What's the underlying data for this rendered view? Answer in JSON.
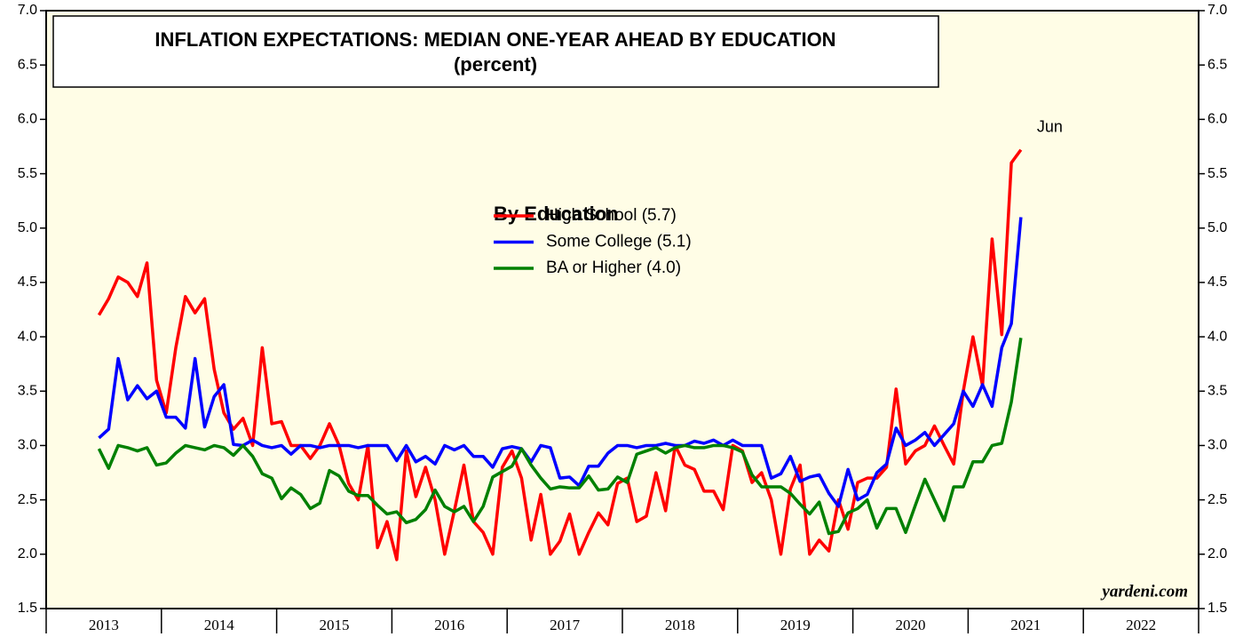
{
  "chart_data": {
    "type": "line",
    "title": "INFLATION EXPECTATIONS: MEDIAN ONE-YEAR AHEAD BY EDUCATION",
    "subtitle": "(percent)",
    "legend_title": "By Education",
    "annotation": "Jun",
    "source": "yardeni.com",
    "xlim": [
      2013,
      2023
    ],
    "xticks": [
      2013,
      2014,
      2015,
      2016,
      2017,
      2018,
      2019,
      2020,
      2021,
      2022,
      2023
    ],
    "xtick_labels": [
      2013,
      2014,
      2015,
      2016,
      2017,
      2018,
      2019,
      2020,
      2021,
      2022
    ],
    "ylim": [
      1.5,
      7
    ],
    "yticks": [
      {
        "value": 1.5,
        "label": "1.5"
      },
      {
        "value": 2,
        "label": "2.0"
      },
      {
        "value": 2.5,
        "label": "2.5"
      },
      {
        "value": 3,
        "label": "3.0"
      },
      {
        "value": 3.5,
        "label": "3.5"
      },
      {
        "value": 4,
        "label": "4.0"
      },
      {
        "value": 4.5,
        "label": "4.5"
      },
      {
        "value": 5,
        "label": "5.0"
      },
      {
        "value": 5.5,
        "label": "5.5"
      },
      {
        "value": 6,
        "label": "6.0"
      },
      {
        "value": 6.5,
        "label": "6.5"
      },
      {
        "value": 7,
        "label": "7.0"
      }
    ],
    "x": [
      2013.458,
      2013.542,
      2013.625,
      2013.708,
      2013.792,
      2013.875,
      2013.958,
      2014.042,
      2014.125,
      2014.208,
      2014.292,
      2014.375,
      2014.458,
      2014.542,
      2014.625,
      2014.708,
      2014.792,
      2014.875,
      2014.958,
      2015.042,
      2015.125,
      2015.208,
      2015.292,
      2015.375,
      2015.458,
      2015.542,
      2015.625,
      2015.708,
      2015.792,
      2015.875,
      2015.958,
      2016.042,
      2016.125,
      2016.208,
      2016.292,
      2016.375,
      2016.458,
      2016.542,
      2016.625,
      2016.708,
      2016.792,
      2016.875,
      2016.958,
      2017.042,
      2017.125,
      2017.208,
      2017.292,
      2017.375,
      2017.458,
      2017.542,
      2017.625,
      2017.708,
      2017.792,
      2017.875,
      2017.958,
      2018.042,
      2018.125,
      2018.208,
      2018.292,
      2018.375,
      2018.458,
      2018.542,
      2018.625,
      2018.708,
      2018.792,
      2018.875,
      2018.958,
      2019.042,
      2019.125,
      2019.208,
      2019.292,
      2019.375,
      2019.458,
      2019.542,
      2019.625,
      2019.708,
      2019.792,
      2019.875,
      2019.958,
      2020.042,
      2020.125,
      2020.208,
      2020.292,
      2020.375,
      2020.458,
      2020.542,
      2020.625,
      2020.708,
      2020.792,
      2020.875,
      2020.958,
      2021.042,
      2021.125,
      2021.208,
      2021.292,
      2021.375,
      2021.458
    ],
    "series": [
      {
        "name": "High School (5.7)",
        "color": "#ff0000",
        "values": [
          4.2,
          4.35,
          4.55,
          4.5,
          4.37,
          4.68,
          3.6,
          3.3,
          3.9,
          4.37,
          4.22,
          4.35,
          3.7,
          3.3,
          3.15,
          3.25,
          3.0,
          3.9,
          3.2,
          3.22,
          3.0,
          3.0,
          2.88,
          3.0,
          3.2,
          3.0,
          2.65,
          2.5,
          3.0,
          2.06,
          2.3,
          1.95,
          2.95,
          2.53,
          2.8,
          2.5,
          2.0,
          2.4,
          2.82,
          2.3,
          2.2,
          2.0,
          2.8,
          2.95,
          2.7,
          2.13,
          2.55,
          2.0,
          2.12,
          2.37,
          2.0,
          2.2,
          2.38,
          2.27,
          2.65,
          2.7,
          2.3,
          2.35,
          2.75,
          2.4,
          3.0,
          2.82,
          2.78,
          2.58,
          2.58,
          2.41,
          3.0,
          2.95,
          2.66,
          2.75,
          2.5,
          2.0,
          2.6,
          2.82,
          2.0,
          2.13,
          2.03,
          2.5,
          2.23,
          2.66,
          2.7,
          2.7,
          2.8,
          3.52,
          2.83,
          2.95,
          3.0,
          3.18,
          3.0,
          2.83,
          3.5,
          4.0,
          3.55,
          4.9,
          4.02,
          5.6,
          5.72
        ]
      },
      {
        "name": "Some College (5.1)",
        "color": "#0000ff",
        "values": [
          3.07,
          3.15,
          3.8,
          3.42,
          3.55,
          3.43,
          3.5,
          3.26,
          3.26,
          3.16,
          3.8,
          3.17,
          3.45,
          3.56,
          3.01,
          3.0,
          3.05,
          3.0,
          2.98,
          3.0,
          2.92,
          3.0,
          3.0,
          2.98,
          3.0,
          3.0,
          3.0,
          2.98,
          3.0,
          3.0,
          3.0,
          2.86,
          3.0,
          2.85,
          2.9,
          2.83,
          3.0,
          2.96,
          3.0,
          2.9,
          2.9,
          2.8,
          2.97,
          2.99,
          2.97,
          2.85,
          3.0,
          2.98,
          2.7,
          2.71,
          2.63,
          2.81,
          2.81,
          2.93,
          3.0,
          3.0,
          2.98,
          3.0,
          3.0,
          3.02,
          3.0,
          3.0,
          3.04,
          3.02,
          3.05,
          3.0,
          3.05,
          3.0,
          3.0,
          3.0,
          2.7,
          2.74,
          2.9,
          2.67,
          2.71,
          2.73,
          2.56,
          2.44,
          2.78,
          2.5,
          2.55,
          2.75,
          2.83,
          3.16,
          3.0,
          3.05,
          3.12,
          3.0,
          3.1,
          3.2,
          3.5,
          3.36,
          3.56,
          3.36,
          3.9,
          4.12,
          5.1
        ]
      },
      {
        "name": "BA or Higher (4.0)",
        "color": "#008000",
        "values": [
          2.97,
          2.79,
          3.0,
          2.98,
          2.95,
          2.98,
          2.82,
          2.84,
          2.93,
          3.0,
          2.98,
          2.96,
          3.0,
          2.98,
          2.91,
          3.0,
          2.9,
          2.74,
          2.7,
          2.51,
          2.61,
          2.55,
          2.42,
          2.47,
          2.77,
          2.72,
          2.58,
          2.54,
          2.54,
          2.45,
          2.37,
          2.39,
          2.29,
          2.32,
          2.41,
          2.59,
          2.44,
          2.39,
          2.44,
          2.3,
          2.44,
          2.71,
          2.76,
          2.81,
          2.97,
          2.82,
          2.7,
          2.6,
          2.62,
          2.61,
          2.61,
          2.72,
          2.59,
          2.6,
          2.71,
          2.66,
          2.92,
          2.95,
          2.98,
          2.93,
          2.98,
          3.0,
          2.98,
          2.98,
          3.0,
          3.0,
          2.98,
          2.94,
          2.73,
          2.62,
          2.62,
          2.62,
          2.56,
          2.46,
          2.37,
          2.48,
          2.19,
          2.21,
          2.38,
          2.42,
          2.5,
          2.24,
          2.42,
          2.42,
          2.2,
          2.45,
          2.69,
          2.5,
          2.31,
          2.62,
          2.62,
          2.85,
          2.85,
          3.0,
          3.02,
          3.4,
          3.99
        ]
      }
    ]
  }
}
